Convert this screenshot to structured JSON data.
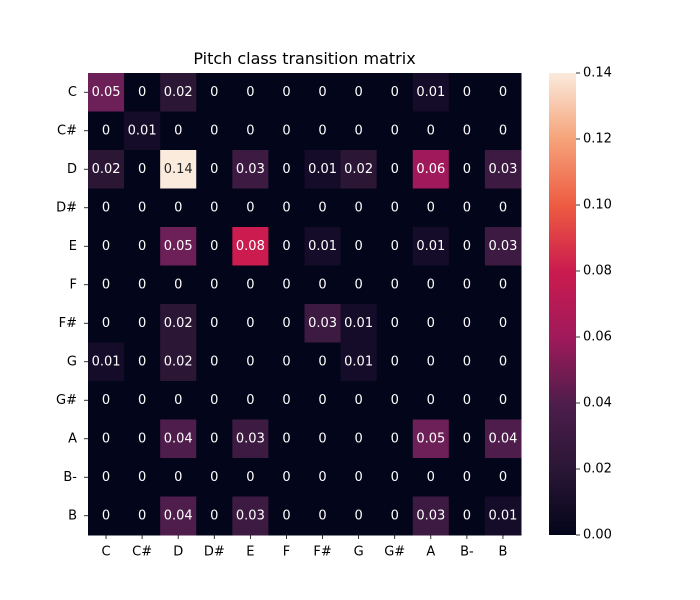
{
  "chart_data": {
    "type": "heatmap",
    "title": "Pitch class transition matrix",
    "xlabel": "",
    "ylabel": "",
    "row_labels": [
      "C",
      "C#",
      "D",
      "D#",
      "E",
      "F",
      "F#",
      "G",
      "G#",
      "A",
      "B-",
      "B"
    ],
    "col_labels": [
      "C",
      "C#",
      "D",
      "D#",
      "E",
      "F",
      "F#",
      "G",
      "G#",
      "A",
      "B-",
      "B"
    ],
    "values": [
      [
        0.05,
        0,
        0.02,
        0,
        0,
        0,
        0,
        0,
        0,
        0.01,
        0,
        0
      ],
      [
        0,
        0.01,
        0,
        0,
        0,
        0,
        0,
        0,
        0,
        0,
        0,
        0
      ],
      [
        0.02,
        0,
        0.14,
        0,
        0.03,
        0,
        0.01,
        0.02,
        0,
        0.06,
        0,
        0.03
      ],
      [
        0,
        0,
        0,
        0,
        0,
        0,
        0,
        0,
        0,
        0,
        0,
        0
      ],
      [
        0,
        0,
        0.05,
        0,
        0.08,
        0,
        0.01,
        0,
        0,
        0.01,
        0,
        0.03
      ],
      [
        0,
        0,
        0,
        0,
        0,
        0,
        0,
        0,
        0,
        0,
        0,
        0
      ],
      [
        0,
        0,
        0.02,
        0,
        0,
        0,
        0.03,
        0.01,
        0,
        0,
        0,
        0
      ],
      [
        0.01,
        0,
        0.02,
        0,
        0,
        0,
        0,
        0.01,
        0,
        0,
        0,
        0
      ],
      [
        0,
        0,
        0,
        0,
        0,
        0,
        0,
        0,
        0,
        0,
        0,
        0
      ],
      [
        0,
        0,
        0.04,
        0,
        0.03,
        0,
        0,
        0,
        0,
        0.05,
        0,
        0.04
      ],
      [
        0,
        0,
        0,
        0,
        0,
        0,
        0,
        0,
        0,
        0,
        0,
        0
      ],
      [
        0,
        0,
        0.04,
        0,
        0.03,
        0,
        0,
        0,
        0,
        0.03,
        0,
        0.01
      ]
    ],
    "color_range": [
      0,
      0.14
    ],
    "colormap": "rocket",
    "colorbar_ticks": [
      0.0,
      0.02,
      0.04,
      0.06,
      0.08,
      0.1,
      0.12,
      0.14
    ],
    "colorbar_tick_labels": [
      "0.00",
      "0.02",
      "0.04",
      "0.06",
      "0.08",
      "0.10",
      "0.12",
      "0.14"
    ]
  }
}
